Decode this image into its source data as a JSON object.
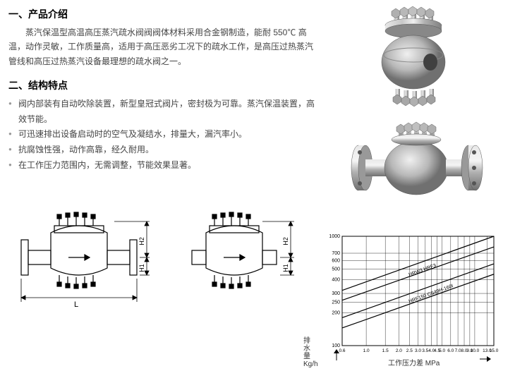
{
  "section1": {
    "title": "一、产品介绍",
    "text": "蒸汽保温型高温高压蒸汽疏水阀阀阀体材料采用合金钢制造，能耐 550℃ 高温，动作灵敏，工作质量高，适用于高压恶劣工况下的疏水工作，是高压过热蒸汽管线和高压过热蒸汽设备最理想的疏水阀之一。"
  },
  "section2": {
    "title": "二、结构特点",
    "items": [
      "阀内部装有自动吹除装置，新型皇冠式阀片，密封极为可靠。蒸汽保温装置，高效节能。",
      "可迅速排出设备启动时的空气及凝结水，排量大，漏汽率小。",
      "抗腐蚀性强，动作高靠，经久耐用。",
      "在工作压力范围内，无需调整，节能效果显著。"
    ]
  },
  "diagram": {
    "labels": {
      "L": "L",
      "H1": "H1",
      "H2": "H2"
    },
    "stroke": "#000000"
  },
  "chart": {
    "x_label": "工作压力差   MPa",
    "y_label_top": "排",
    "y_label_mid": "水",
    "y_label_bot": "量",
    "y_unit": "Kg/h",
    "x_ticks": [
      "0.6",
      "1.0",
      "1.5",
      "2.0",
      "2.5",
      "3.0",
      "3.5",
      "4.0",
      "4.5",
      "5.0",
      "6.0",
      "7.0",
      "8.0",
      "9.0",
      "10.0",
      "13.0",
      "15.0"
    ],
    "y_ticks": [
      "100",
      "200",
      "250",
      "300",
      "400",
      "500",
      "600",
      "700",
      "1000"
    ],
    "series": [
      {
        "label": "HRW3  HRF3"
      },
      {
        "label": "HRF150  CS49H-160I"
      }
    ],
    "stroke": "#000000",
    "grid_color": "#000000"
  },
  "colors": {
    "metal_light": "#d8d8d8",
    "metal_mid": "#a8a8a8",
    "metal_dark": "#707070",
    "metal_shadow": "#505050"
  }
}
